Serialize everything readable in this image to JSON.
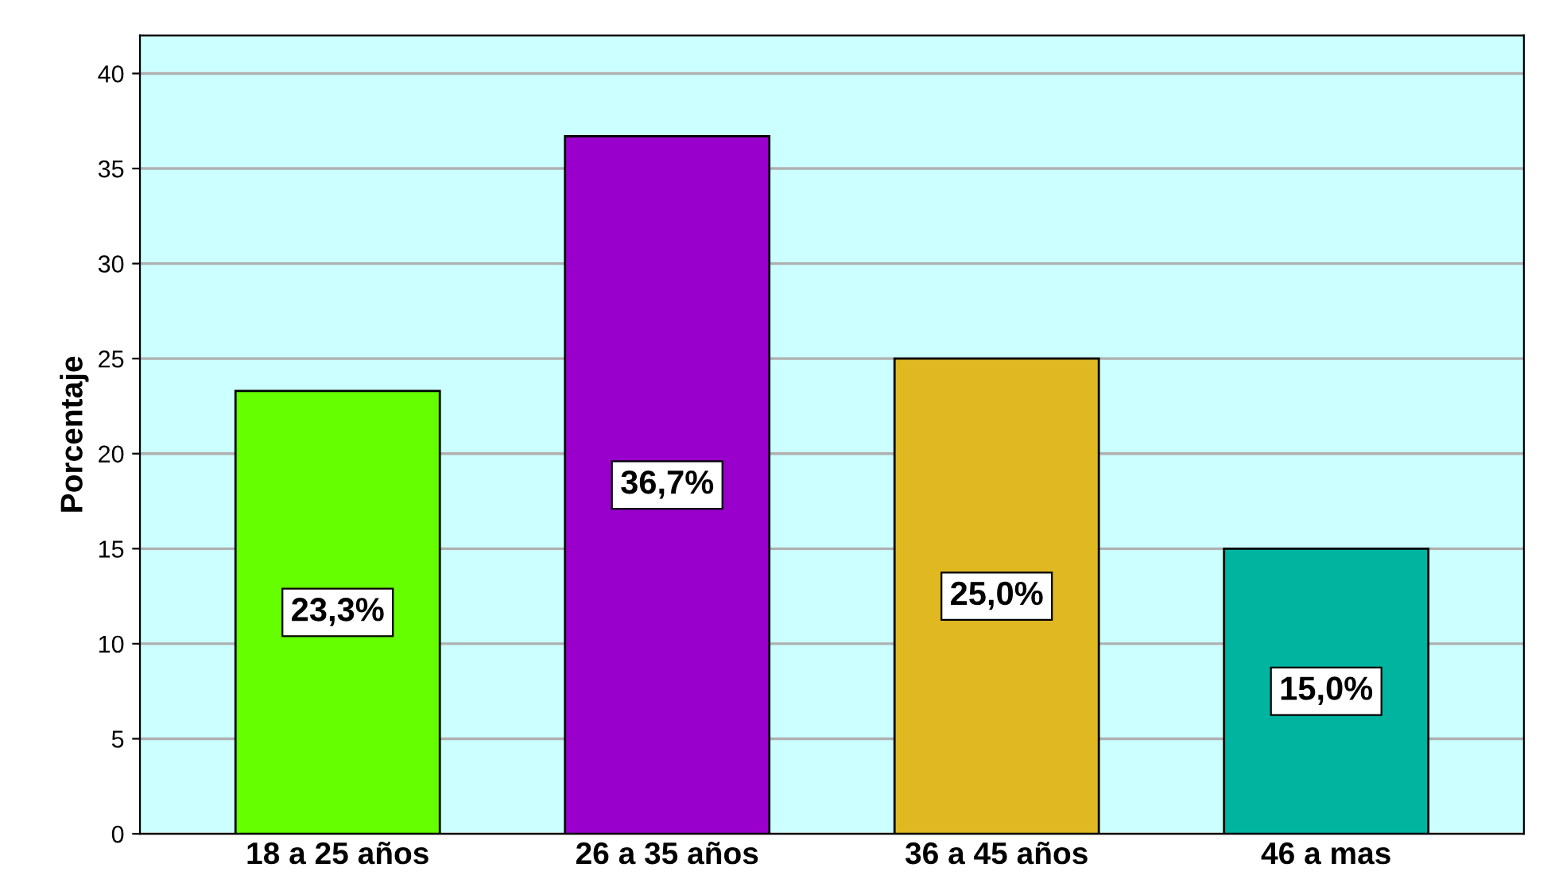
{
  "chart_data": {
    "type": "bar",
    "ylabel": "Porcentaje",
    "categories": [
      "18 a 25 años",
      "26 a 35 años",
      "36 a 45 años",
      "46 a mas"
    ],
    "values": [
      23.3,
      36.7,
      25.0,
      15.0
    ],
    "colors": [
      "#66ff00",
      "#9900cc",
      "#e0b822",
      "#00b4a0"
    ],
    "value_labels": [
      "23,3%",
      "36,7%",
      "25,0%",
      "15,0%"
    ],
    "ylim": [
      0,
      42
    ],
    "yticks": [
      0,
      5,
      10,
      15,
      20,
      25,
      30,
      35,
      40
    ],
    "grid": "y"
  }
}
